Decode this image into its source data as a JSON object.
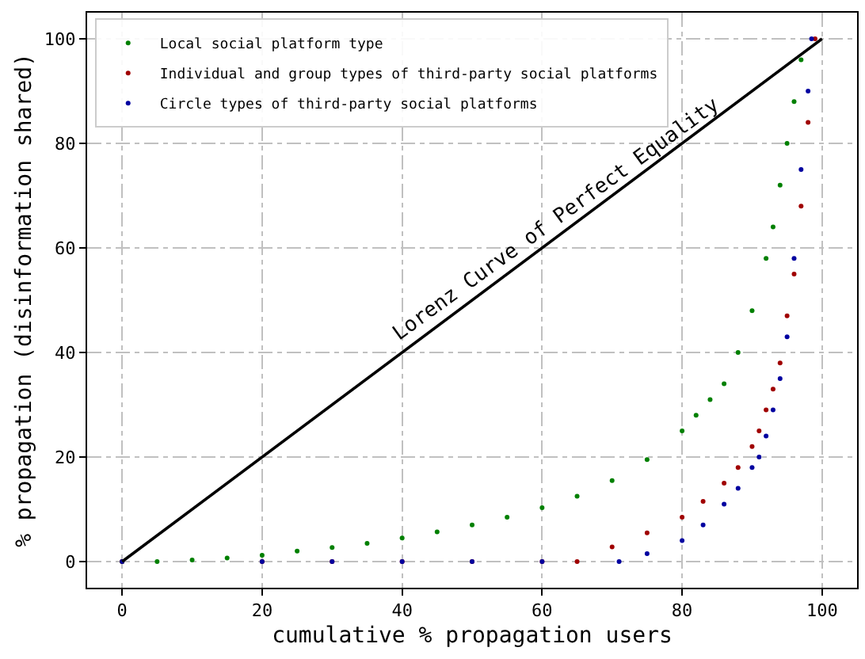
{
  "chart_data": {
    "type": "scatter",
    "xlabel": "cumulative % propagation users",
    "ylabel": "% propagation (disinformation shared)",
    "xlim": [
      -5,
      105
    ],
    "ylim": [
      -5,
      105
    ],
    "xticks": [
      0,
      20,
      40,
      60,
      80,
      100
    ],
    "yticks": [
      0,
      20,
      40,
      60,
      80,
      100
    ],
    "grid": true,
    "legend": "top left",
    "marker": "circle",
    "series": [
      {
        "name": "Local social platform type",
        "color": "#008000",
        "x": [
          0,
          5,
          10,
          15,
          20,
          25,
          30,
          35,
          40,
          45,
          50,
          55,
          60,
          65,
          70,
          75,
          80,
          82,
          84,
          86,
          88,
          90,
          92,
          93,
          94,
          95,
          96,
          97
        ],
        "values": [
          0,
          0,
          0.3,
          0.7,
          1.2,
          2,
          2.7,
          3.5,
          4.5,
          5.7,
          7,
          8.5,
          10.3,
          12.5,
          15.5,
          19.5,
          25,
          28,
          31,
          34,
          40,
          48,
          58,
          64,
          72,
          80,
          88,
          96
        ]
      },
      {
        "name": "Individual and group types of third-party social platforms",
        "color": "#a00000",
        "x": [
          0,
          20,
          30,
          40,
          50,
          60,
          65,
          70,
          75,
          80,
          83,
          86,
          88,
          90,
          91,
          92,
          93,
          94,
          95,
          96,
          97,
          98,
          99
        ],
        "values": [
          0,
          0,
          0,
          0,
          0,
          0,
          0,
          2.8,
          5.5,
          8.5,
          11.5,
          15,
          18,
          22,
          25,
          29,
          33,
          38,
          47,
          55,
          68,
          84,
          100
        ]
      },
      {
        "name": "Circle types of third-party social platforms",
        "color": "#0000a0",
        "x": [
          0,
          20,
          30,
          40,
          50,
          60,
          71,
          75,
          80,
          83,
          86,
          88,
          90,
          91,
          92,
          93,
          94,
          95,
          96,
          97,
          98,
          98.5
        ],
        "values": [
          0,
          0,
          0,
          0,
          0,
          0,
          0,
          1.5,
          4,
          7,
          11,
          14,
          18,
          20,
          24,
          29,
          35,
          43,
          58,
          75,
          90,
          100
        ]
      },
      {
        "type": "line",
        "marker": "none",
        "color": "#000000",
        "x": [
          0,
          100
        ],
        "values": [
          0,
          100
        ]
      }
    ],
    "annotations": [
      "Lorenz Curve of Perfect Equality"
    ]
  }
}
